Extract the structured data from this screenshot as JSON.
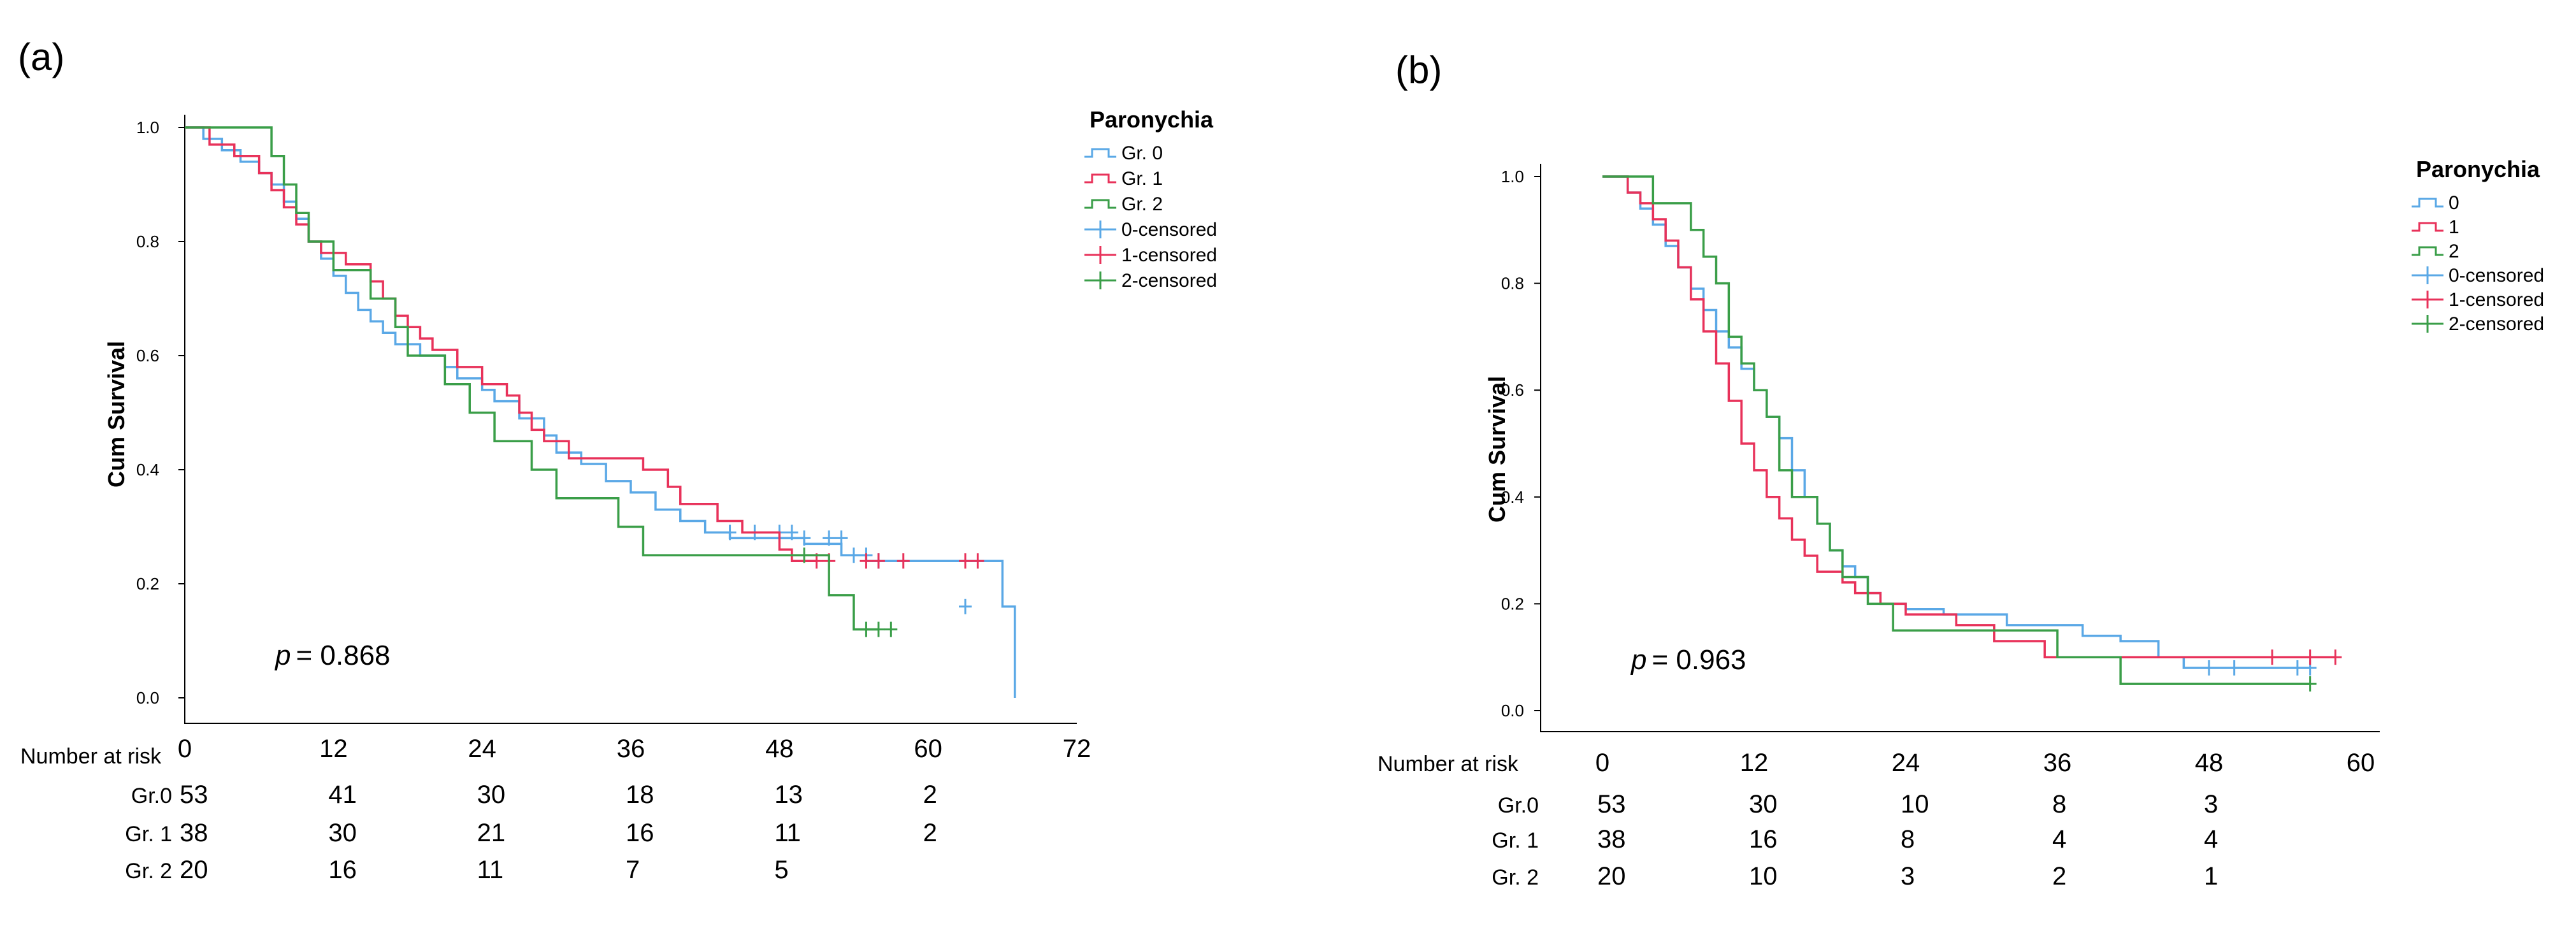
{
  "colors": {
    "s0": "#5aa8e6",
    "s1": "#e8325a",
    "s2": "#3a9e48"
  },
  "chart_data": [
    {
      "type": "line",
      "panel_label": "(a)",
      "title": "",
      "xlabel": "",
      "ylabel": "Cum Survival",
      "xlim": [
        0,
        72
      ],
      "ylim": [
        0,
        1.0
      ],
      "x_ticks": [
        "0",
        "12",
        "24",
        "36",
        "48",
        "60",
        "72"
      ],
      "y_ticks": [
        "0.0",
        "0.2",
        "0.4",
        "0.6",
        "0.8",
        "1.0"
      ],
      "grid": false,
      "legend_position": "top-right",
      "legend_title": "Paronychia",
      "legend": [
        "Gr. 0",
        "Gr. 1",
        "Gr. 2",
        "0-censored",
        "1-censored",
        "2-censored"
      ],
      "annotation": {
        "p_label": "p",
        "p_value": "= 0.868"
      },
      "series": [
        {
          "name": "Gr. 0",
          "color_key": "s0",
          "steps": [
            [
              0,
              1.0
            ],
            [
              1.5,
              0.98
            ],
            [
              3,
              0.96
            ],
            [
              4.5,
              0.94
            ],
            [
              6,
              0.92
            ],
            [
              7,
              0.9
            ],
            [
              8,
              0.87
            ],
            [
              9,
              0.84
            ],
            [
              10,
              0.8
            ],
            [
              11,
              0.77
            ],
            [
              12,
              0.74
            ],
            [
              13,
              0.71
            ],
            [
              14,
              0.68
            ],
            [
              15,
              0.66
            ],
            [
              16,
              0.64
            ],
            [
              17,
              0.62
            ],
            [
              19,
              0.6
            ],
            [
              21,
              0.58
            ],
            [
              22,
              0.56
            ],
            [
              24,
              0.54
            ],
            [
              25,
              0.52
            ],
            [
              27,
              0.49
            ],
            [
              29,
              0.46
            ],
            [
              30,
              0.43
            ],
            [
              32,
              0.41
            ],
            [
              34,
              0.38
            ],
            [
              36,
              0.36
            ],
            [
              38,
              0.33
            ],
            [
              40,
              0.31
            ],
            [
              42,
              0.29
            ],
            [
              44,
              0.28
            ],
            [
              50,
              0.27
            ],
            [
              53,
              0.25
            ],
            [
              55,
              0.24
            ],
            [
              66,
              0.16
            ],
            [
              67,
              0.0
            ]
          ],
          "censored": [
            [
              44,
              0.29
            ],
            [
              46,
              0.29
            ],
            [
              48,
              0.29
            ],
            [
              49,
              0.29
            ],
            [
              50,
              0.28
            ],
            [
              52,
              0.28
            ],
            [
              53,
              0.28
            ],
            [
              54,
              0.25
            ],
            [
              55,
              0.25
            ],
            [
              56,
              0.24
            ],
            [
              63,
              0.16
            ]
          ]
        },
        {
          "name": "Gr. 1",
          "color_key": "s1",
          "steps": [
            [
              0,
              1.0
            ],
            [
              2,
              0.97
            ],
            [
              4,
              0.95
            ],
            [
              6,
              0.92
            ],
            [
              7,
              0.89
            ],
            [
              8,
              0.86
            ],
            [
              9,
              0.83
            ],
            [
              10,
              0.8
            ],
            [
              11,
              0.78
            ],
            [
              13,
              0.76
            ],
            [
              15,
              0.73
            ],
            [
              16,
              0.7
            ],
            [
              17,
              0.67
            ],
            [
              18,
              0.65
            ],
            [
              19,
              0.63
            ],
            [
              20,
              0.61
            ],
            [
              22,
              0.58
            ],
            [
              24,
              0.55
            ],
            [
              26,
              0.53
            ],
            [
              27,
              0.5
            ],
            [
              28,
              0.47
            ],
            [
              29,
              0.45
            ],
            [
              31,
              0.42
            ],
            [
              36,
              0.42
            ],
            [
              37,
              0.4
            ],
            [
              39,
              0.37
            ],
            [
              40,
              0.34
            ],
            [
              43,
              0.31
            ],
            [
              45,
              0.29
            ],
            [
              48,
              0.26
            ],
            [
              49,
              0.24
            ],
            [
              51,
              0.24
            ]
          ],
          "censored": [
            [
              51,
              0.24
            ],
            [
              52,
              0.24
            ],
            [
              55,
              0.24
            ],
            [
              56,
              0.24
            ],
            [
              58,
              0.24
            ],
            [
              63,
              0.24
            ],
            [
              64,
              0.24
            ]
          ]
        },
        {
          "name": "Gr. 2",
          "color_key": "s2",
          "steps": [
            [
              0,
              1.0
            ],
            [
              7,
              0.95
            ],
            [
              8,
              0.9
            ],
            [
              9,
              0.85
            ],
            [
              10,
              0.8
            ],
            [
              12,
              0.75
            ],
            [
              15,
              0.7
            ],
            [
              17,
              0.65
            ],
            [
              18,
              0.6
            ],
            [
              21,
              0.55
            ],
            [
              23,
              0.5
            ],
            [
              25,
              0.45
            ],
            [
              28,
              0.4
            ],
            [
              30,
              0.35
            ],
            [
              35,
              0.3
            ],
            [
              37,
              0.25
            ],
            [
              52,
              0.18
            ],
            [
              54,
              0.12
            ],
            [
              56,
              0.12
            ]
          ],
          "censored": [
            [
              50,
              0.25
            ],
            [
              55,
              0.12
            ],
            [
              56,
              0.12
            ],
            [
              57,
              0.12
            ]
          ]
        }
      ],
      "risk_table": {
        "header": "Number at risk",
        "rows": [
          {
            "label": "Gr.0",
            "values": [
              "53",
              "41",
              "30",
              "18",
              "13",
              "2"
            ]
          },
          {
            "label": "Gr. 1",
            "values": [
              "38",
              "30",
              "21",
              "16",
              "11",
              "2"
            ]
          },
          {
            "label": "Gr. 2",
            "values": [
              "20",
              "16",
              "11",
              "7",
              "5",
              ""
            ]
          }
        ]
      }
    },
    {
      "type": "line",
      "panel_label": "(b)",
      "title": "",
      "xlabel": "",
      "ylabel": "Cum Survival",
      "xlim": [
        0,
        60
      ],
      "ylim": [
        0,
        1.0
      ],
      "x_ticks": [
        "0",
        "12",
        "24",
        "36",
        "48",
        "60"
      ],
      "y_ticks": [
        "0.0",
        "0.2",
        "0.4",
        "0.6",
        "0.8",
        "1.0"
      ],
      "grid": false,
      "legend_position": "top-right",
      "legend_title": "Paronychia",
      "legend": [
        "0",
        "1",
        "2",
        "0-censored",
        "1-censored",
        "2-censored"
      ],
      "annotation": {
        "p_label": "p",
        "p_value": "= 0.963"
      },
      "series": [
        {
          "name": "0",
          "color_key": "s0",
          "steps": [
            [
              0,
              1.0
            ],
            [
              2,
              0.97
            ],
            [
              3,
              0.94
            ],
            [
              4,
              0.91
            ],
            [
              5,
              0.87
            ],
            [
              6,
              0.83
            ],
            [
              7,
              0.79
            ],
            [
              8,
              0.75
            ],
            [
              9,
              0.71
            ],
            [
              10,
              0.68
            ],
            [
              11,
              0.64
            ],
            [
              12,
              0.6
            ],
            [
              13,
              0.55
            ],
            [
              14,
              0.51
            ],
            [
              15,
              0.45
            ],
            [
              16,
              0.4
            ],
            [
              17,
              0.35
            ],
            [
              18,
              0.3
            ],
            [
              19,
              0.27
            ],
            [
              20,
              0.25
            ],
            [
              21,
              0.22
            ],
            [
              22,
              0.2
            ],
            [
              24,
              0.19
            ],
            [
              27,
              0.18
            ],
            [
              32,
              0.16
            ],
            [
              38,
              0.14
            ],
            [
              41,
              0.13
            ],
            [
              44,
              0.1
            ],
            [
              46,
              0.08
            ],
            [
              56,
              0.08
            ]
          ],
          "censored": [
            [
              48,
              0.08
            ],
            [
              50,
              0.08
            ],
            [
              55,
              0.08
            ],
            [
              56,
              0.08
            ]
          ]
        },
        {
          "name": "1",
          "color_key": "s1",
          "steps": [
            [
              0,
              1.0
            ],
            [
              2,
              0.97
            ],
            [
              3,
              0.95
            ],
            [
              4,
              0.92
            ],
            [
              5,
              0.88
            ],
            [
              6,
              0.83
            ],
            [
              7,
              0.77
            ],
            [
              8,
              0.71
            ],
            [
              9,
              0.65
            ],
            [
              10,
              0.58
            ],
            [
              11,
              0.5
            ],
            [
              12,
              0.45
            ],
            [
              13,
              0.4
            ],
            [
              14,
              0.36
            ],
            [
              15,
              0.32
            ],
            [
              16,
              0.29
            ],
            [
              17,
              0.26
            ],
            [
              19,
              0.24
            ],
            [
              20,
              0.22
            ],
            [
              22,
              0.2
            ],
            [
              24,
              0.18
            ],
            [
              28,
              0.16
            ],
            [
              31,
              0.13
            ],
            [
              35,
              0.1
            ],
            [
              45,
              0.1
            ],
            [
              49,
              0.1
            ],
            [
              58,
              0.1
            ]
          ],
          "censored": [
            [
              53,
              0.1
            ],
            [
              56,
              0.1
            ],
            [
              58,
              0.1
            ]
          ]
        },
        {
          "name": "2",
          "color_key": "s2",
          "steps": [
            [
              0,
              1.0
            ],
            [
              4,
              0.95
            ],
            [
              7,
              0.9
            ],
            [
              8,
              0.85
            ],
            [
              9,
              0.8
            ],
            [
              10,
              0.7
            ],
            [
              11,
              0.65
            ],
            [
              12,
              0.6
            ],
            [
              13,
              0.55
            ],
            [
              14,
              0.45
            ],
            [
              15,
              0.4
            ],
            [
              17,
              0.35
            ],
            [
              18,
              0.3
            ],
            [
              19,
              0.25
            ],
            [
              21,
              0.2
            ],
            [
              23,
              0.15
            ],
            [
              34,
              0.15
            ],
            [
              36,
              0.1
            ],
            [
              41,
              0.05
            ],
            [
              56,
              0.05
            ]
          ],
          "censored": [
            [
              56,
              0.05
            ]
          ]
        }
      ],
      "risk_table": {
        "header": "Number at risk",
        "rows": [
          {
            "label": "Gr.0",
            "values": [
              "53",
              "30",
              "10",
              "8",
              "3"
            ]
          },
          {
            "label": "Gr. 1",
            "values": [
              "38",
              "16",
              "8",
              "4",
              "4"
            ]
          },
          {
            "label": "Gr. 2",
            "values": [
              "20",
              "10",
              "3",
              "2",
              "1"
            ]
          }
        ]
      }
    }
  ]
}
